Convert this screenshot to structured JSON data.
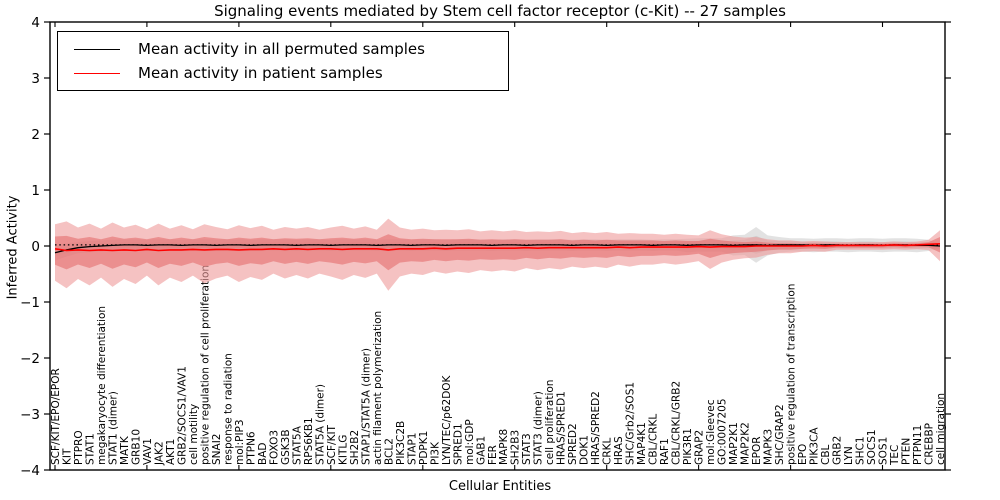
{
  "title": "Signaling events mediated by Stem cell factor receptor (c-Kit) -- 27 samples",
  "axes": {
    "xlabel": "Cellular Entities",
    "ylabel": "Inferred Activity",
    "ytick_labels": [
      "4",
      "3",
      "2",
      "1",
      "0",
      "−1",
      "−2",
      "−3",
      "−4"
    ],
    "ytick_values": [
      4,
      3,
      2,
      1,
      0,
      -1,
      -2,
      -3,
      -4
    ]
  },
  "legend": {
    "items": [
      {
        "label": "Mean activity in all permuted samples",
        "color": "#000000"
      },
      {
        "label": "Mean activity in patient samples",
        "color": "#ff0000"
      }
    ]
  },
  "colors": {
    "patient_line": "#ff0000",
    "permuted_line": "#000000",
    "patient_band_outer": "#ef9a9a",
    "patient_band_inner": "#e57373",
    "permuted_band_outer": "#d5d5d5",
    "permuted_band_inner": "#c8c8c8"
  },
  "chart_data": {
    "type": "line",
    "title": "Signaling events mediated by Stem cell factor receptor (c-Kit) -- 27 samples",
    "xlabel": "Cellular Entities",
    "ylabel": "Inferred Activity",
    "ylim": [
      -4,
      4
    ],
    "grid": false,
    "legend_position": "upper left",
    "reference_dotted_y": 0.02,
    "band_sigma_upper": 2.0,
    "band_sigma_lower": 2.6,
    "categories": [
      "SCF/KIT/EPO/EPOR",
      "KIT",
      "PTPRO",
      "STAT1",
      "megakaryocyte differentiation",
      "STAT1 (dimer)",
      "MATK",
      "GRB10",
      "VAV1",
      "JAK2",
      "AKT1",
      "GRB2/SOCS1/VAV1",
      "cell motility",
      "positive regulation of cell proliferation",
      "SNAI2",
      "response to radiation",
      "mol:PIP3",
      "PTPN6",
      "BAD",
      "FOXO3",
      "GSK3B",
      "STAT5A",
      "RPS6KB1",
      "STAT5A (dimer)",
      "SCF/KIT",
      "KITLG",
      "SH2B2",
      "STAP1/STAT5A (dimer)",
      "actin filament polymerization",
      "BCL2",
      "PIK3C2B",
      "STAP1",
      "PDPK1",
      "PI3K",
      "LYN/TEC/p62DOK",
      "SPRED1",
      "mol:GDP",
      "GAB1",
      "FER",
      "MAPK8",
      "SH2B3",
      "STAT3",
      "STAT3 (dimer)",
      "cell proliferation",
      "HRAS/SPRED1",
      "SPRED2",
      "DOK1",
      "HRAS/SPRED2",
      "CRKL",
      "HRAS",
      "SHC/Grb2/SOS1",
      "MAP4K1",
      "CBL/CRKL",
      "RAF1",
      "CBL/CRKL/GRB2",
      "PIK3R1",
      "GRAP2",
      "mol:Gleevec",
      "GO:0007205",
      "MAP2K1",
      "MAP2K2",
      "EPOR",
      "MAPK3",
      "SHC/GRAP2",
      "positive regulation of transcription",
      "EPO",
      "PIK3CA",
      "CBL",
      "GRB2",
      "LYN",
      "SHC1",
      "SOCS1",
      "SOS1",
      "TEC",
      "PTEN",
      "PTPN11",
      "CREBBP",
      "cell migration"
    ],
    "series": [
      {
        "name": "Mean activity in all permuted samples",
        "role": "permuted_mean",
        "color": "#000000",
        "values": [
          -0.12,
          -0.07,
          -0.03,
          -0.01,
          0,
          0.01,
          0.02,
          0.02,
          0.01,
          0.02,
          0.02,
          0.01,
          0.02,
          0.02,
          0.01,
          0.02,
          0.02,
          0.01,
          0.02,
          0.02,
          0.02,
          0.01,
          0.02,
          0.02,
          0.01,
          0.02,
          0.02,
          0.02,
          0.01,
          0.02,
          0.02,
          0.01,
          0.02,
          0.02,
          0.01,
          0.02,
          0.02,
          0.02,
          0.01,
          0.02,
          0.02,
          0.01,
          0.02,
          0.02,
          0.02,
          0.01,
          0.02,
          0.02,
          0.01,
          0.02,
          0.02,
          0.02,
          0.01,
          0.02,
          0.02,
          0.01,
          0.02,
          0.02,
          0.02,
          0.01,
          0.02,
          0.02,
          0.01,
          0.02,
          0.02,
          0.02,
          0.01,
          0.02,
          0.02,
          0.01,
          0.02,
          0.02,
          0.01,
          0.02,
          0.02,
          0.01,
          0.01,
          0
        ]
      },
      {
        "name": "Mean activity in patient samples",
        "role": "patient_mean",
        "color": "#ff0000",
        "values": [
          -0.05,
          -0.08,
          -0.07,
          -0.08,
          -0.07,
          -0.08,
          -0.07,
          -0.08,
          -0.06,
          -0.08,
          -0.07,
          -0.07,
          -0.06,
          -0.07,
          -0.06,
          -0.06,
          -0.07,
          -0.06,
          -0.06,
          -0.05,
          -0.06,
          -0.05,
          -0.06,
          -0.05,
          -0.05,
          -0.06,
          -0.05,
          -0.05,
          -0.05,
          -0.07,
          -0.05,
          -0.05,
          -0.05,
          -0.04,
          -0.05,
          -0.04,
          -0.04,
          -0.04,
          -0.04,
          -0.04,
          -0.04,
          -0.03,
          -0.04,
          -0.03,
          -0.03,
          -0.03,
          -0.03,
          -0.03,
          -0.03,
          -0.02,
          -0.03,
          -0.02,
          -0.02,
          -0.02,
          -0.02,
          -0.02,
          -0.01,
          -0.02,
          -0.01,
          -0.01,
          -0.01,
          0,
          0,
          0,
          0,
          0,
          0.01,
          0,
          0.01,
          0.01,
          0.01,
          0.01,
          0.01,
          0.02,
          0.01,
          0.02,
          0.03,
          0.04
        ]
      },
      {
        "name": "Patient sample std dev (band half-width)",
        "role": "patient_std",
        "values": [
          0.22,
          0.26,
          0.2,
          0.24,
          0.19,
          0.25,
          0.2,
          0.23,
          0.18,
          0.24,
          0.19,
          0.22,
          0.18,
          0.23,
          0.2,
          0.18,
          0.22,
          0.19,
          0.21,
          0.17,
          0.2,
          0.18,
          0.2,
          0.17,
          0.19,
          0.21,
          0.18,
          0.2,
          0.17,
          0.28,
          0.19,
          0.17,
          0.18,
          0.16,
          0.17,
          0.16,
          0.17,
          0.15,
          0.16,
          0.15,
          0.16,
          0.14,
          0.15,
          0.14,
          0.15,
          0.13,
          0.14,
          0.13,
          0.14,
          0.12,
          0.13,
          0.12,
          0.12,
          0.11,
          0.12,
          0.11,
          0.1,
          0.15,
          0.11,
          0.09,
          0.08,
          0.08,
          0.06,
          0.05,
          0.05,
          0.04,
          0.04,
          0.04,
          0.03,
          0.03,
          0.03,
          0.03,
          0.03,
          0.03,
          0.03,
          0.03,
          0.04,
          0.12
        ]
      },
      {
        "name": "Permuted sample std dev (band half-width)",
        "role": "permuted_std",
        "values": [
          0.07,
          0.06,
          0.05,
          0.05,
          0.05,
          0.05,
          0.05,
          0.05,
          0.05,
          0.05,
          0.05,
          0.05,
          0.05,
          0.05,
          0.05,
          0.05,
          0.05,
          0.05,
          0.05,
          0.05,
          0.05,
          0.05,
          0.05,
          0.05,
          0.05,
          0.05,
          0.05,
          0.05,
          0.05,
          0.05,
          0.05,
          0.05,
          0.05,
          0.05,
          0.05,
          0.05,
          0.05,
          0.05,
          0.05,
          0.05,
          0.05,
          0.05,
          0.05,
          0.05,
          0.05,
          0.05,
          0.05,
          0.05,
          0.05,
          0.05,
          0.05,
          0.05,
          0.05,
          0.05,
          0.05,
          0.06,
          0.06,
          0.06,
          0.06,
          0.09,
          0.09,
          0.16,
          0.09,
          0.07,
          0.06,
          0.06,
          0.06,
          0.06,
          0.06,
          0.06,
          0.06,
          0.06,
          0.06,
          0.06,
          0.06,
          0.06,
          0.05,
          0.02
        ]
      }
    ]
  }
}
